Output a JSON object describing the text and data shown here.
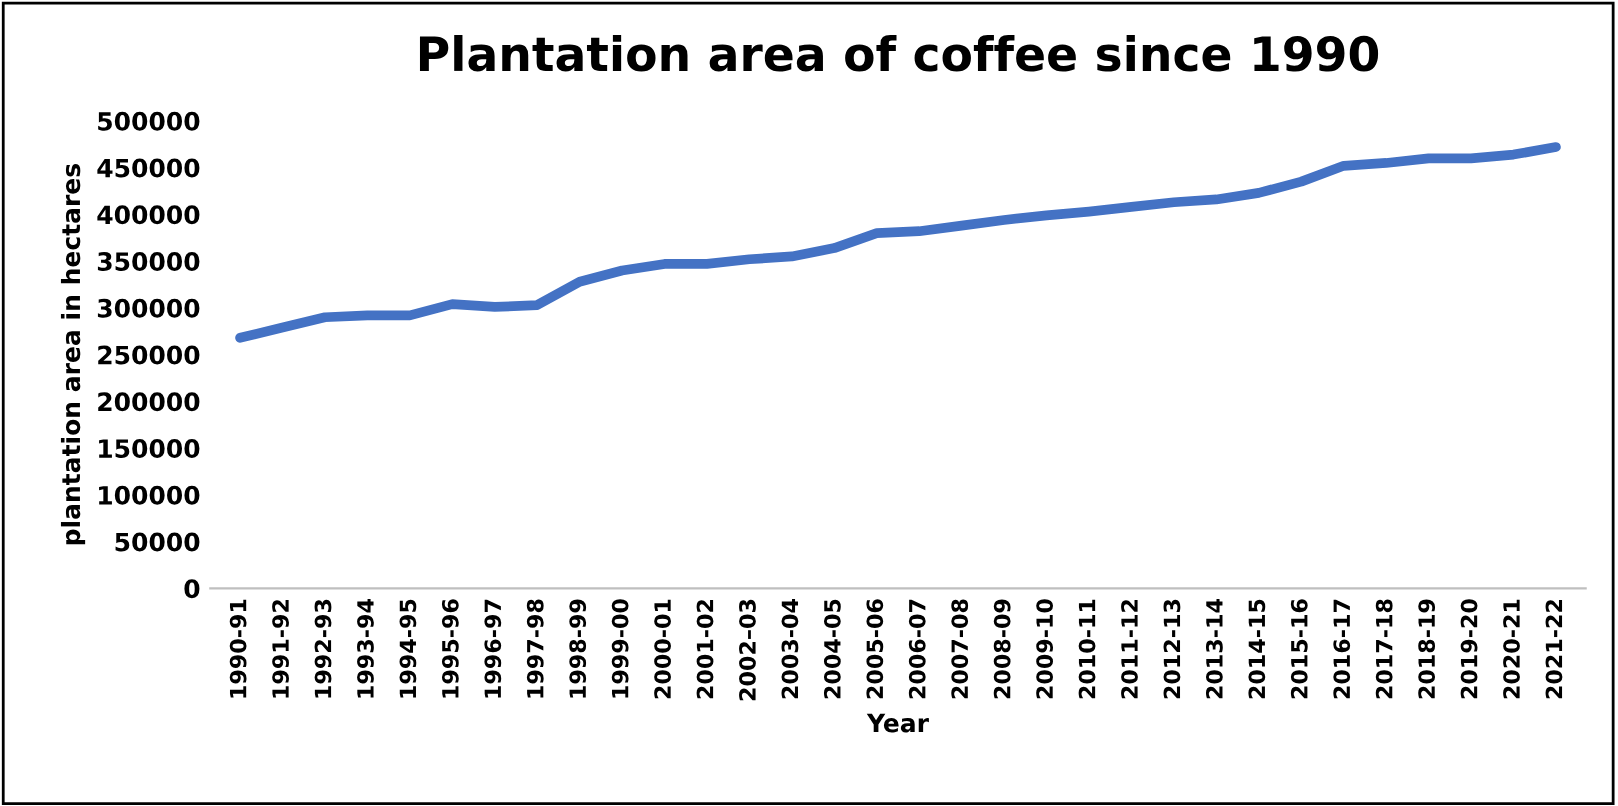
{
  "chart_data": {
    "type": "line",
    "title": "Plantation area of coffee since 1990",
    "xlabel": "Year",
    "ylabel": "plantation area in hectares",
    "categories": [
      "1990-91",
      "1991-92",
      "1992-93",
      "1993-94",
      "1994-95",
      "1995-96",
      "1996-97",
      "1997-98",
      "1998-99",
      "1999-00",
      "2000-01",
      "2001-02",
      "2002–03",
      "2003-04",
      "2004-05",
      "2005-06",
      "2006-07",
      "2007-08",
      "2008-09",
      "2009-10",
      "2010-11",
      "2011-12",
      "2012-13",
      "2013-14",
      "2014-15",
      "2015-16",
      "2016-17",
      "2017-18",
      "2018-19",
      "2019-20",
      "2020-21",
      "2021-22"
    ],
    "series": [
      {
        "color": "#4472c4",
        "values": [
          268000,
          279000,
          290000,
          292000,
          292000,
          304000,
          301000,
          303000,
          328000,
          340000,
          347000,
          347000,
          352000,
          355000,
          364000,
          380000,
          382000,
          388000,
          394000,
          399000,
          403000,
          408000,
          413000,
          416000,
          423000,
          435000,
          452000,
          455000,
          460000,
          460000,
          464000,
          472000
        ]
      }
    ],
    "ylim": [
      0,
      500000
    ],
    "yticks": [
      0,
      50000,
      100000,
      150000,
      200000,
      250000,
      300000,
      350000,
      400000,
      450000,
      500000
    ],
    "grid": false,
    "marker": "none",
    "line_style": "solid"
  }
}
